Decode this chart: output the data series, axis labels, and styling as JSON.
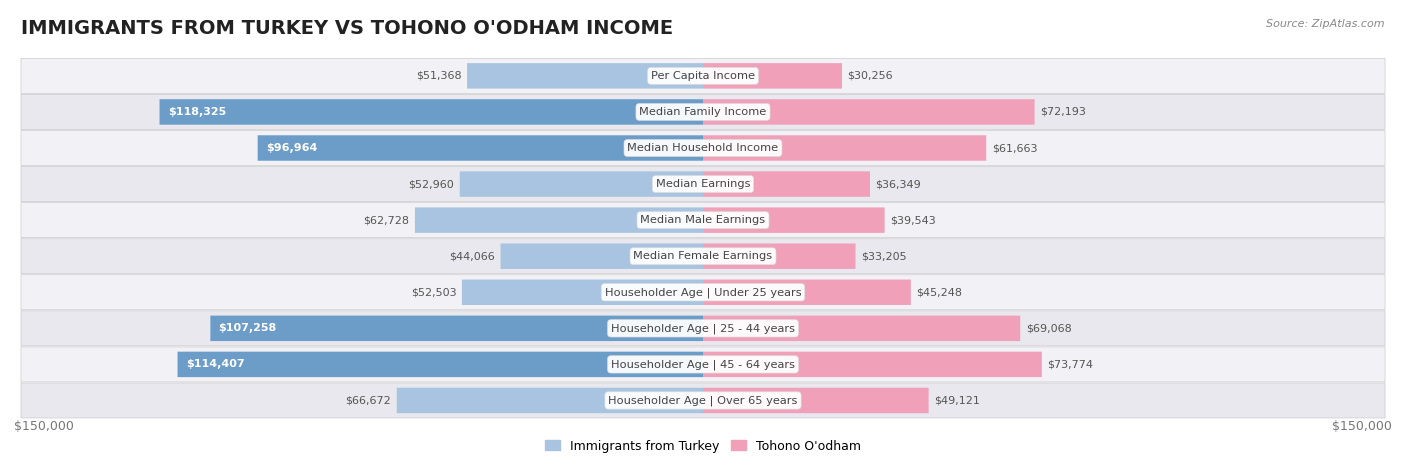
{
  "title": "IMMIGRANTS FROM TURKEY VS TOHONO O'ODHAM INCOME",
  "source": "Source: ZipAtlas.com",
  "categories": [
    "Per Capita Income",
    "Median Family Income",
    "Median Household Income",
    "Median Earnings",
    "Median Male Earnings",
    "Median Female Earnings",
    "Householder Age | Under 25 years",
    "Householder Age | 25 - 44 years",
    "Householder Age | 45 - 64 years",
    "Householder Age | Over 65 years"
  ],
  "left_values": [
    51368,
    118325,
    96964,
    52960,
    62728,
    44066,
    52503,
    107258,
    114407,
    66672
  ],
  "right_values": [
    30256,
    72193,
    61663,
    36349,
    39543,
    33205,
    45248,
    69068,
    73774,
    49121
  ],
  "left_labels": [
    "$51,368",
    "$118,325",
    "$96,964",
    "$52,960",
    "$62,728",
    "$44,066",
    "$52,503",
    "$107,258",
    "$114,407",
    "$66,672"
  ],
  "right_labels": [
    "$30,256",
    "$72,193",
    "$61,663",
    "$36,349",
    "$39,543",
    "$33,205",
    "$45,248",
    "$69,068",
    "$73,774",
    "$49,121"
  ],
  "max_value": 150000,
  "left_color_dark": "#6b9dc8",
  "left_color_light": "#a8c4e0",
  "right_color_dark": "#e8607a",
  "right_color_light": "#f0a0b8",
  "row_bg_color_odd": "#f2f2f6",
  "row_bg_color_even": "#e8e8ee",
  "legend_left": "Immigrants from Turkey",
  "legend_right": "Tohono O'odham",
  "title_fontsize": 14,
  "axis_label": "$150,000",
  "background_color": "#ffffff",
  "inside_label_threshold": 75000,
  "left_dark_rows": [
    1,
    2,
    7,
    8,
    9
  ],
  "right_dark_rows": [
    1,
    2,
    7,
    8,
    9
  ]
}
